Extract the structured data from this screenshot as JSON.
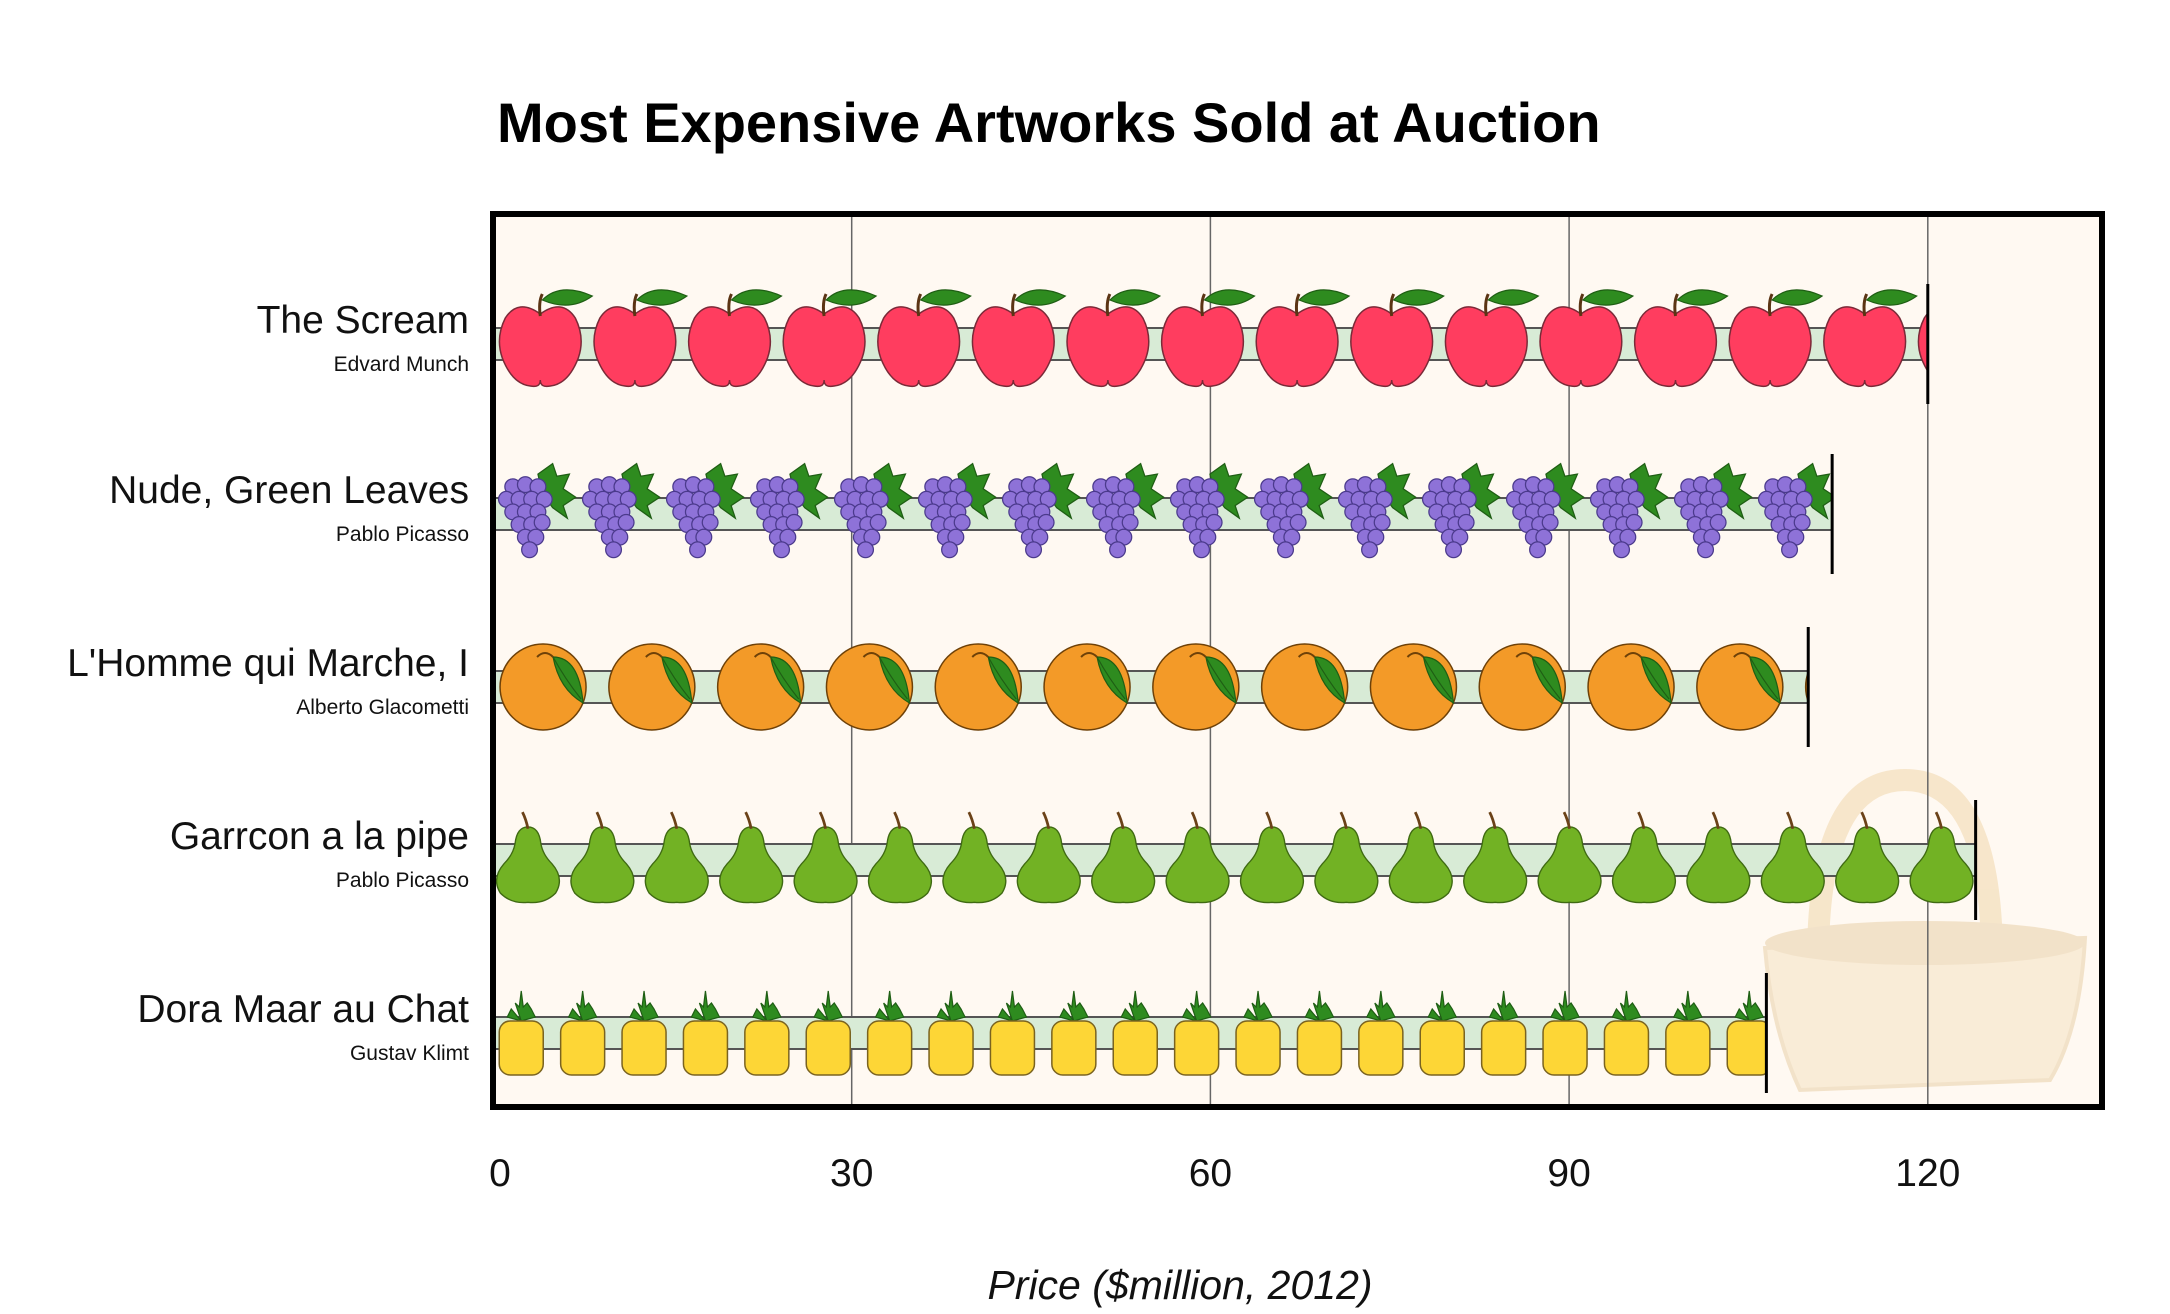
{
  "chart_data": {
    "type": "bar",
    "orientation": "horizontal",
    "title": "Most Expensive Artworks Sold at Auction",
    "xlabel": "Price ($million, 2012)",
    "ylabel": "",
    "xlim": [
      0,
      135
    ],
    "x_ticks": [
      0,
      30,
      60,
      90,
      120
    ],
    "grid": "vertical",
    "categories": [
      {
        "label": "The Scream",
        "artist": "Edvard Munch",
        "value": 120,
        "icon": "apple-icon",
        "color": "#ff3d5f"
      },
      {
        "label": "Nude, Green Leaves",
        "artist": "Pablo Picasso",
        "value": 112,
        "icon": "grapes-icon",
        "color": "#8e72d8"
      },
      {
        "label": "L'Homme qui Marche, I",
        "artist": "Alberto Glacometti",
        "value": 110,
        "icon": "orange-icon",
        "color": "#f39a28"
      },
      {
        "label": "Garrcon a la pipe",
        "artist": "Pablo Picasso",
        "value": 124,
        "icon": "pear-icon",
        "color": "#72b224"
      },
      {
        "label": "Dora Maar au Chat",
        "artist": "Gustav Klimt",
        "value": 106.5,
        "icon": "pineapple-icon",
        "color": "#fdd636"
      }
    ],
    "decoration": "basket-icon",
    "plot_background": "#fff9f2",
    "bar_fill": "#d8ebd6"
  }
}
